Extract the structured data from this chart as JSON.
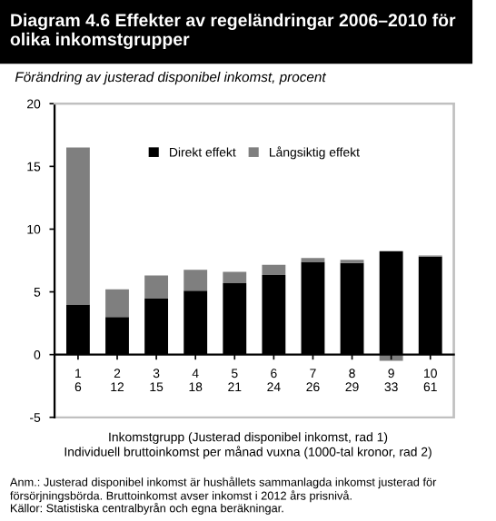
{
  "chart_data": {
    "type": "bar",
    "stacked": true,
    "title": "Diagram 4.6 Effekter av regeländringar 2006–2010 för olika inkomstgrupper",
    "subtitle": "Förändring av justerad disponibel inkomst, procent",
    "xlabel": "Inkomstgrupp (Justerad disponibel inkomst, rad 1)\nIndividuell bruttoinkomst per månad vuxna (1000-tal kronor, rad 2)",
    "categories": [
      "1\n6",
      "2\n12",
      "3\n15",
      "4\n18",
      "5\n21",
      "6\n24",
      "7\n26",
      "8\n29",
      "9\n33",
      "10\n61"
    ],
    "series": [
      {
        "name": "Direkt effekt",
        "color": "#000000",
        "values": [
          4.0,
          3.0,
          4.5,
          5.1,
          5.7,
          6.35,
          7.4,
          7.3,
          8.25,
          7.8
        ]
      },
      {
        "name": "Långsiktig effekt",
        "color": "#7f7f7f",
        "values": [
          12.5,
          2.2,
          1.8,
          1.65,
          0.9,
          0.8,
          0.3,
          0.25,
          -0.5,
          0.1
        ]
      }
    ],
    "ylim": [
      -5,
      20
    ],
    "yticks": [
      -5,
      0,
      5,
      10,
      15,
      20
    ],
    "grid": false,
    "legend": "top",
    "annotations": [
      "Anm.: Justerad disponibel inkomst är hushållets sammanlagda inkomst justerad för försörjningsbörda. Bruttoinkomst avser inkomst i 2012 års prisnivå.",
      "Källor: Statistiska centralbyrån och egna beräkningar."
    ]
  }
}
